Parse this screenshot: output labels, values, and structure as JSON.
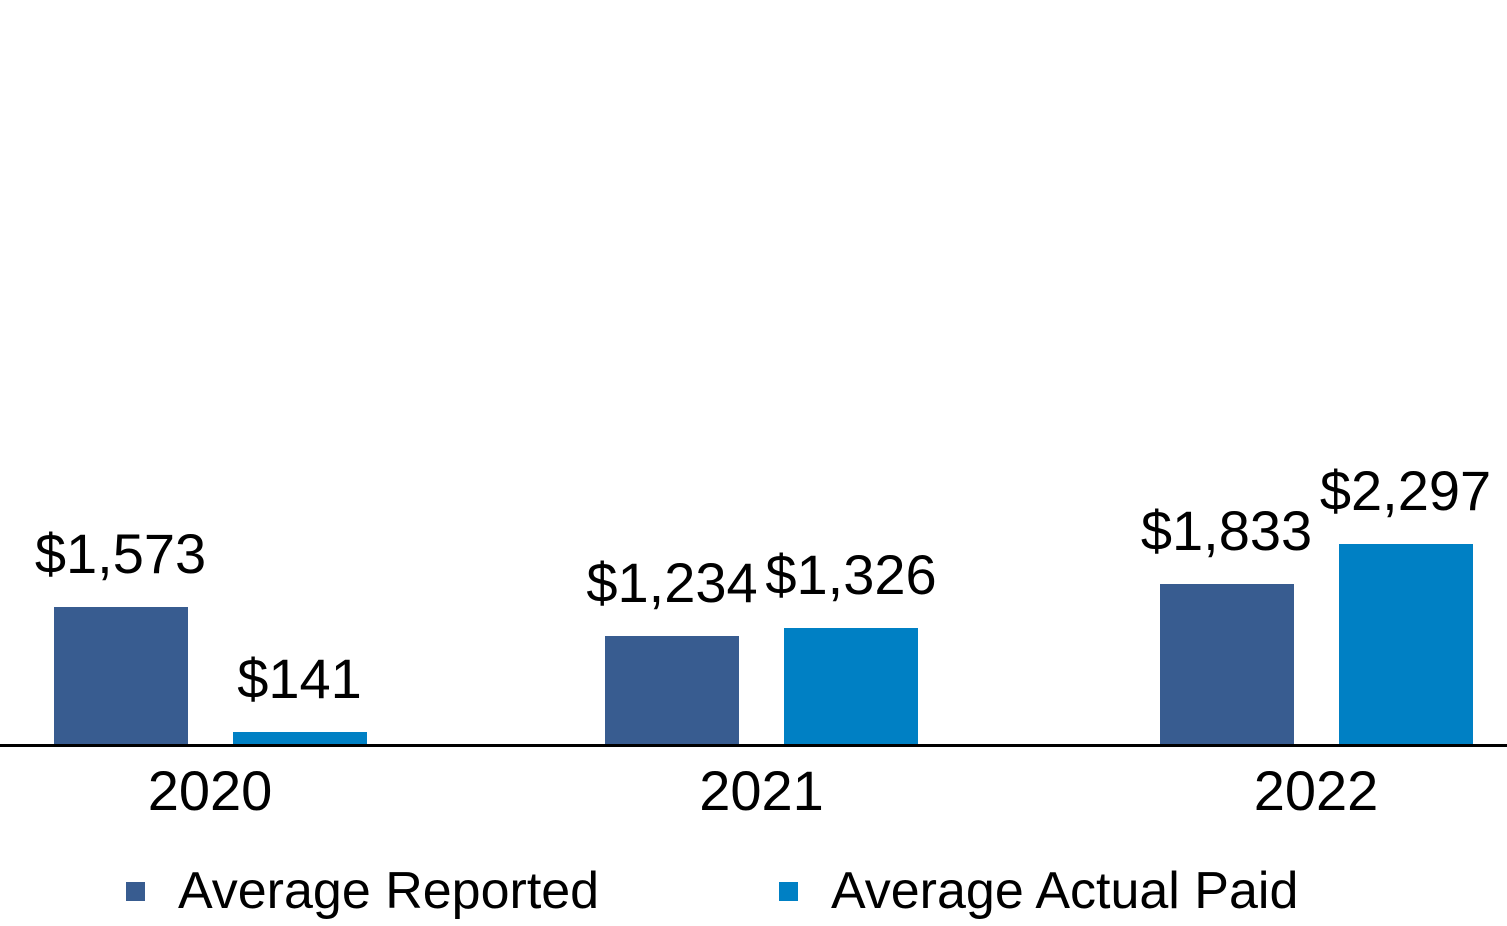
{
  "chart_data": {
    "type": "bar",
    "title": "",
    "xlabel": "",
    "ylabel": "",
    "categories": [
      "2020",
      "2021",
      "2022"
    ],
    "series": [
      {
        "name": "Average Reported",
        "color": "#385C90",
        "values": [
          1573,
          1234,
          1833
        ],
        "labels": [
          "$1,573",
          "$1,234",
          "$1,833"
        ]
      },
      {
        "name": "Average Actual Paid",
        "color": "#0080C4",
        "values": [
          141,
          1326,
          2297
        ],
        "labels": [
          "$141",
          "$1,326",
          "$2,297"
        ]
      }
    ],
    "ylim": [
      0,
      2600
    ],
    "grid": false,
    "y_axis_visible": false,
    "legend_position": "bottom",
    "axis_line_color": "#000000",
    "text_color": "#000000",
    "background": "#FFFFFF"
  }
}
